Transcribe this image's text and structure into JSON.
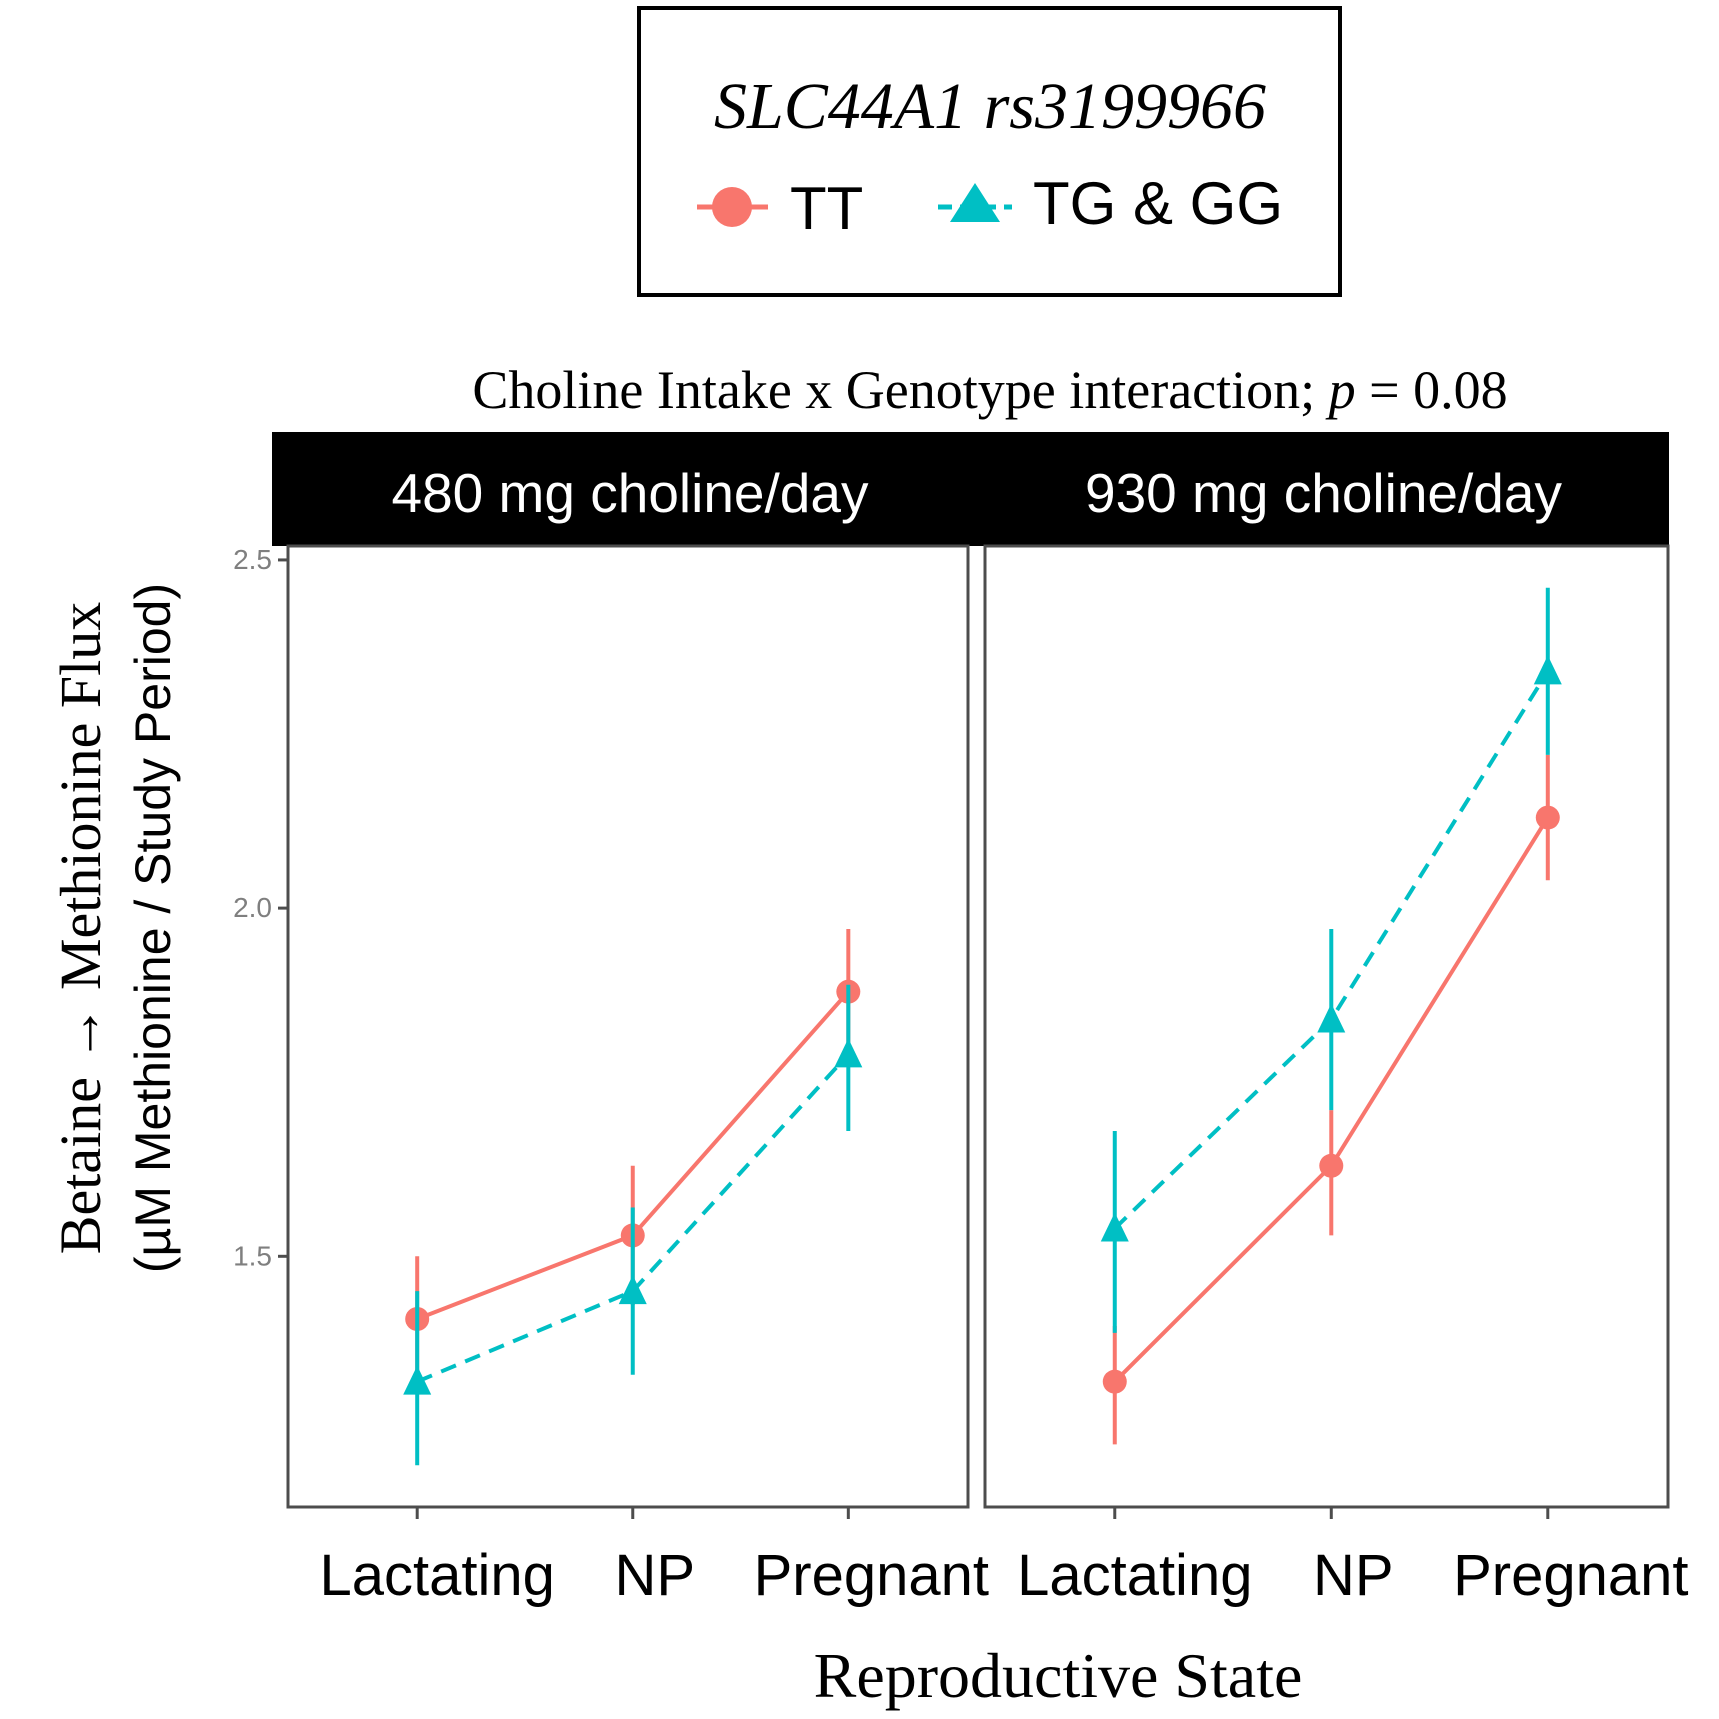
{
  "chart_data": {
    "type": "line",
    "legend": {
      "title": "SLC44A1 rs3199966",
      "placement": "top",
      "entries": [
        {
          "name": "TT",
          "marker": "circle",
          "line": "solid"
        },
        {
          "name": "TG & GG",
          "marker": "triangle",
          "line": "dashed"
        }
      ]
    },
    "title_prefix": "Choline Intake x Genotype interaction; ",
    "title_p": "p",
    "title_suffix": " = 0.08",
    "ylabel": "Betaine → Methionine Flux",
    "ylabel_sub": "(µM Methionine / Study Period)",
    "xlabel": "Reproductive State",
    "categories": [
      "Lactating",
      "NP",
      "Pregnant"
    ],
    "ylim": [
      1.14,
      2.52
    ],
    "yticks": [
      {
        "value": 1.5,
        "label": "1.5"
      },
      {
        "value": 2.0,
        "label": "2.0"
      },
      {
        "value": 2.5,
        "label": "2.5"
      }
    ],
    "panels": [
      {
        "label": "480 mg choline/day",
        "series": [
          {
            "name": "TT",
            "values": [
              1.41,
              1.53,
              1.88
            ],
            "lower": [
              1.32,
              1.43,
              1.78
            ],
            "upper": [
              1.5,
              1.63,
              1.97
            ]
          },
          {
            "name": "TG & GG",
            "values": [
              1.32,
              1.45,
              1.79
            ],
            "lower": [
              1.2,
              1.33,
              1.68
            ],
            "upper": [
              1.45,
              1.57,
              1.89
            ]
          }
        ]
      },
      {
        "label": "930 mg choline/day",
        "series": [
          {
            "name": "TT",
            "values": [
              1.32,
              1.63,
              2.13
            ],
            "lower": [
              1.23,
              1.53,
              2.04
            ],
            "upper": [
              1.4,
              1.71,
              2.22
            ]
          },
          {
            "name": "TG & GG",
            "values": [
              1.54,
              1.84,
              2.34
            ],
            "lower": [
              1.39,
              1.71,
              2.22
            ],
            "upper": [
              1.68,
              1.97,
              2.46
            ]
          }
        ]
      }
    ]
  },
  "colors": {
    "TT": "#F8766D",
    "TG & GG": "#00BFC4",
    "strip_bg": "#000000",
    "strip_text": "#ffffff",
    "axis": "#4d4d4d",
    "tick_text": "#7f7f7f"
  }
}
